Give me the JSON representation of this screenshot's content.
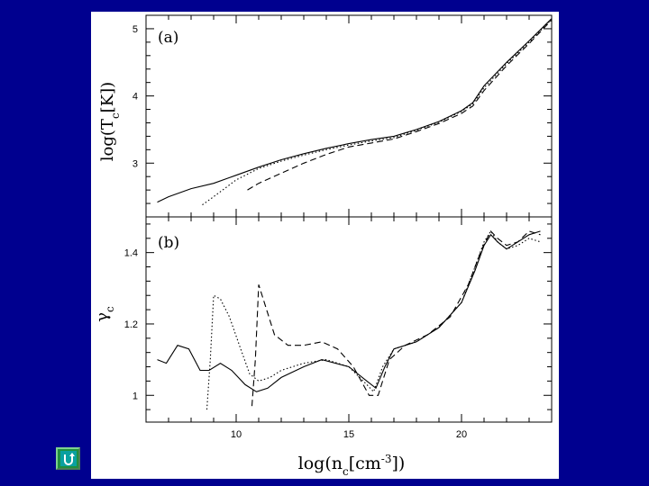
{
  "nav": {
    "icon": "return-arrow-icon"
  },
  "chart_data": [
    {
      "type": "line",
      "panel_label": "(a)",
      "xlabel": "log(n_c[cm^-3])",
      "ylabel": "log(T_c[K])",
      "xlim": [
        6,
        24
      ],
      "ylim": [
        2.2,
        5.2
      ],
      "xticks": [
        10,
        15,
        20
      ],
      "yticks": [
        3,
        4,
        5
      ],
      "series": [
        {
          "style": "solid",
          "x": [
            6.5,
            7,
            8,
            9,
            10,
            11,
            12,
            13,
            14,
            15,
            16,
            17,
            18,
            19,
            20,
            20.5,
            21,
            22,
            23,
            24
          ],
          "y": [
            2.42,
            2.5,
            2.62,
            2.7,
            2.82,
            2.94,
            3.05,
            3.14,
            3.22,
            3.29,
            3.35,
            3.4,
            3.5,
            3.62,
            3.78,
            3.9,
            4.15,
            4.5,
            4.82,
            5.15
          ]
        },
        {
          "style": "dotted",
          "x": [
            8.5,
            9,
            10,
            11,
            12,
            13,
            14,
            15,
            16,
            17,
            18,
            19,
            20,
            20.5,
            21,
            22,
            23,
            24
          ],
          "y": [
            2.38,
            2.5,
            2.75,
            2.92,
            3.03,
            3.12,
            3.2,
            3.27,
            3.33,
            3.38,
            3.49,
            3.61,
            3.77,
            3.88,
            4.12,
            4.48,
            4.8,
            5.14
          ]
        },
        {
          "style": "dashed",
          "x": [
            10.5,
            11,
            12,
            13,
            14,
            15,
            16,
            17,
            18,
            19,
            20,
            20.5,
            21,
            22,
            23,
            24
          ],
          "y": [
            2.6,
            2.7,
            2.85,
            3.0,
            3.13,
            3.24,
            3.3,
            3.36,
            3.47,
            3.59,
            3.74,
            3.85,
            4.08,
            4.45,
            4.78,
            5.13
          ]
        }
      ]
    },
    {
      "type": "line",
      "panel_label": "(b)",
      "xlabel": "log(n_c[cm^-3])",
      "ylabel": "γ_c",
      "xlim": [
        6,
        24
      ],
      "ylim": [
        0.925,
        1.5
      ],
      "xticks": [
        10,
        15,
        20
      ],
      "yticks": [
        1,
        1.2,
        1.4
      ],
      "series": [
        {
          "style": "solid",
          "x": [
            6.5,
            6.9,
            7.4,
            7.9,
            8.4,
            8.8,
            9.3,
            9.8,
            10.4,
            10.9,
            11.4,
            12,
            13,
            13.8,
            15,
            15.8,
            16.2,
            16.6,
            17,
            18,
            19,
            20,
            20.6,
            21,
            21.3,
            21.6,
            22,
            22.5,
            23,
            23.5
          ],
          "y": [
            1.1,
            1.09,
            1.14,
            1.13,
            1.07,
            1.07,
            1.09,
            1.07,
            1.03,
            1.01,
            1.02,
            1.05,
            1.08,
            1.1,
            1.08,
            1.04,
            1.02,
            1.08,
            1.13,
            1.15,
            1.19,
            1.26,
            1.35,
            1.42,
            1.45,
            1.43,
            1.41,
            1.43,
            1.45,
            1.46
          ]
        },
        {
          "style": "dotted",
          "x": [
            8.7,
            8.85,
            9.0,
            9.3,
            9.7,
            10.2,
            10.6,
            11,
            11.5,
            12,
            13,
            14,
            15,
            15.8,
            16.1,
            16.5,
            17,
            18,
            19,
            20,
            20.6,
            21,
            21.3,
            21.6,
            22,
            22.5,
            23,
            23.5
          ],
          "y": [
            0.96,
            1.1,
            1.28,
            1.27,
            1.22,
            1.13,
            1.06,
            1.04,
            1.05,
            1.07,
            1.09,
            1.1,
            1.08,
            1.03,
            1.01,
            1.08,
            1.13,
            1.15,
            1.19,
            1.26,
            1.36,
            1.43,
            1.46,
            1.43,
            1.41,
            1.42,
            1.44,
            1.43
          ]
        },
        {
          "style": "dashed",
          "x": [
            10.7,
            10.85,
            11.0,
            11.3,
            11.7,
            12.3,
            13,
            13.8,
            14.5,
            15.2,
            15.9,
            16.3,
            16.8,
            17.5,
            18.5,
            19.5,
            20.3,
            20.9,
            21.3,
            21.6,
            22,
            22.5,
            23,
            23.5
          ],
          "y": [
            0.97,
            1.1,
            1.31,
            1.25,
            1.17,
            1.14,
            1.14,
            1.15,
            1.13,
            1.08,
            1.0,
            1.0,
            1.1,
            1.14,
            1.17,
            1.22,
            1.31,
            1.41,
            1.46,
            1.44,
            1.42,
            1.43,
            1.46,
            1.45
          ]
        }
      ]
    }
  ]
}
